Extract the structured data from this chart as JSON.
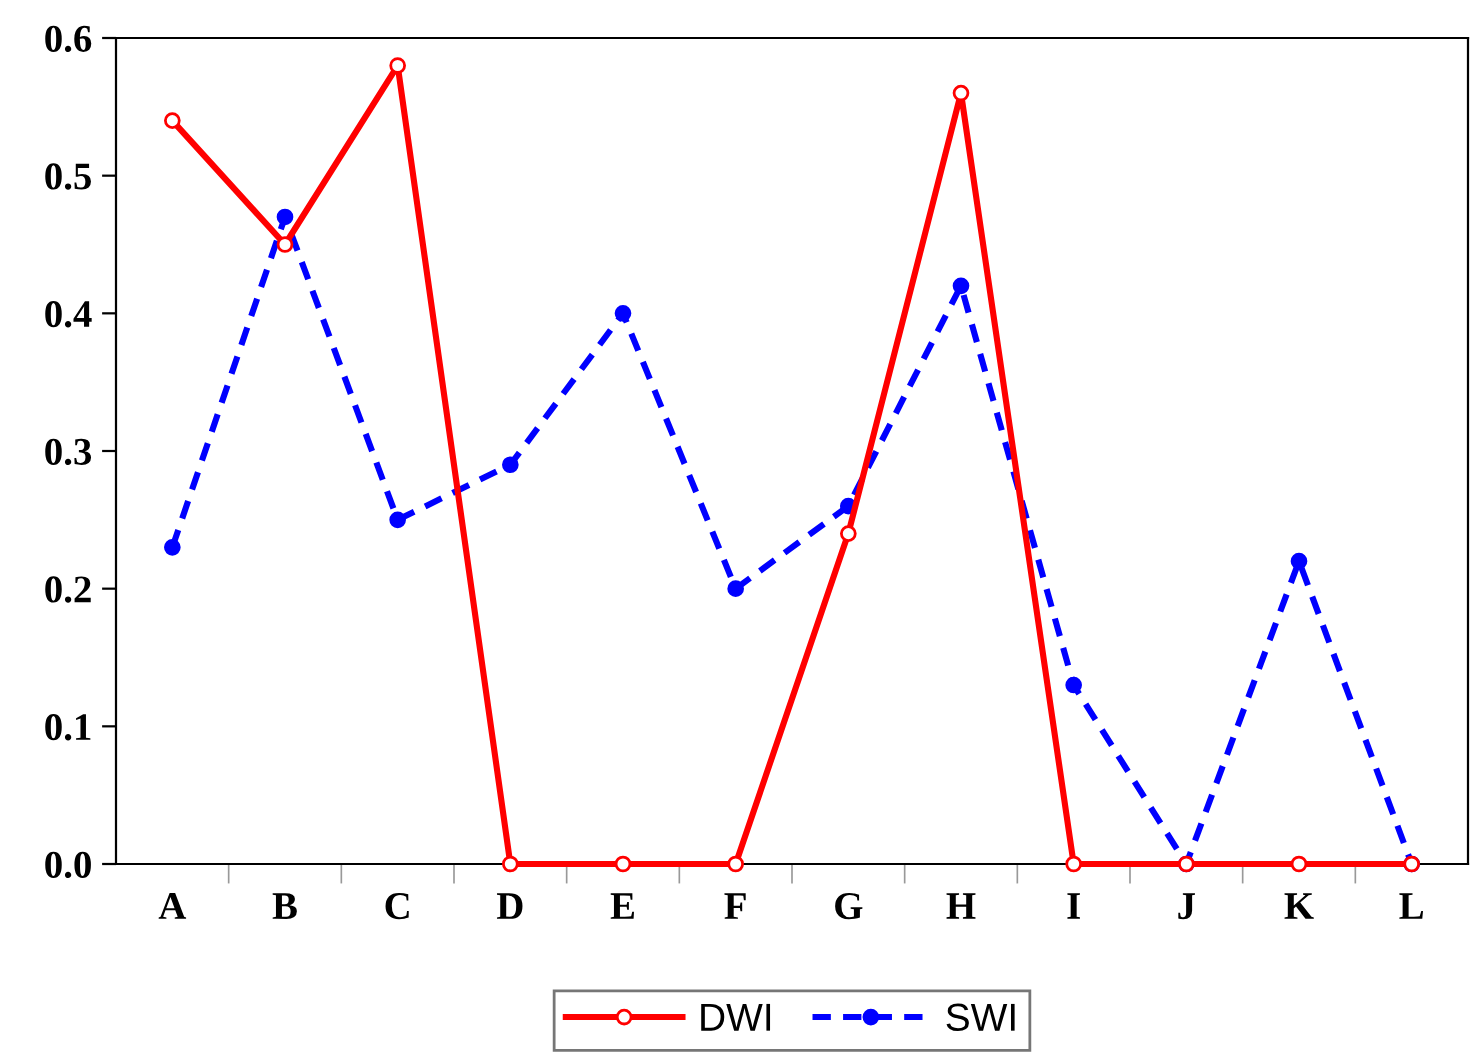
{
  "chart_data": {
    "type": "line",
    "categories": [
      "A",
      "B",
      "C",
      "D",
      "E",
      "F",
      "G",
      "H",
      "I",
      "J",
      "K",
      "L"
    ],
    "series": [
      {
        "name": "DWI",
        "color": "#ff0000",
        "marker": "circle",
        "line_style": "solid",
        "values": [
          0.54,
          0.45,
          0.58,
          0.0,
          0.0,
          0.0,
          0.24,
          0.56,
          0.0,
          0.0,
          0.0,
          0.0
        ]
      },
      {
        "name": "SWI",
        "color": "#0000ff",
        "marker": "circle",
        "line_style": "dashed",
        "values": [
          0.23,
          0.47,
          0.25,
          0.29,
          0.4,
          0.2,
          0.26,
          0.42,
          0.13,
          0.0,
          0.22,
          0.0
        ]
      }
    ],
    "ylim": [
      0,
      0.6
    ],
    "yticks": [
      {
        "value": 0,
        "label": "0.0"
      },
      0.1,
      0.2,
      0.3,
      0.4,
      0.5,
      0.6
    ],
    "grid": false,
    "legend": "bottom"
  }
}
